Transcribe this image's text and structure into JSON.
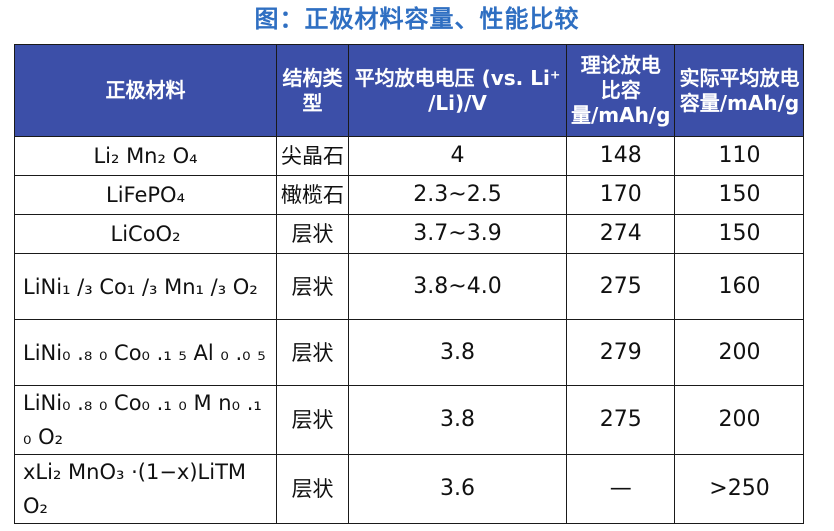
{
  "title": "图：正极材料容量、性能比较",
  "table": {
    "headers": [
      "正极材料",
      "结构类型",
      "平均放电电压 (vs. Li⁺ /Li)/V",
      "理论放电比容量/mAh/g",
      "实际平均放电容量/mAh/g"
    ],
    "rows": [
      {
        "material": "Li₂ Mn₂ O₄",
        "structure": "尖晶石",
        "voltage": "4",
        "theoretical": "148",
        "actual": "110"
      },
      {
        "material": "LiFePO₄",
        "structure": "橄榄石",
        "voltage": "2.3~2.5",
        "theoretical": "170",
        "actual": "150"
      },
      {
        "material": "LiCoO₂",
        "structure": "层状",
        "voltage": "3.7~3.9",
        "theoretical": "274",
        "actual": "150"
      },
      {
        "material": "LiNi₁ /₃ Co₁ /₃ Mn₁ /₃ O₂",
        "structure": "层状",
        "voltage": "3.8~4.0",
        "theoretical": "275",
        "actual": "160"
      },
      {
        "material": "LiNi₀ .₈ ₀ Co₀ .₁ ₅ Al ₀ .₀ ₅",
        "structure": "层状",
        "voltage": "3.8",
        "theoretical": "279",
        "actual": "200"
      },
      {
        "material": "LiNi₀ .₈ ₀ Co₀ .₁ ₀ M n₀ .₁ ₀ O₂",
        "structure": "层状",
        "voltage": "3.8",
        "theoretical": "275",
        "actual": "200"
      },
      {
        "material": "xLi₂ MnO₃ ·(1−x)LiTM O₂",
        "structure": "层状",
        "voltage": "3.6",
        "theoretical": "—",
        "actual": ">250"
      }
    ]
  }
}
